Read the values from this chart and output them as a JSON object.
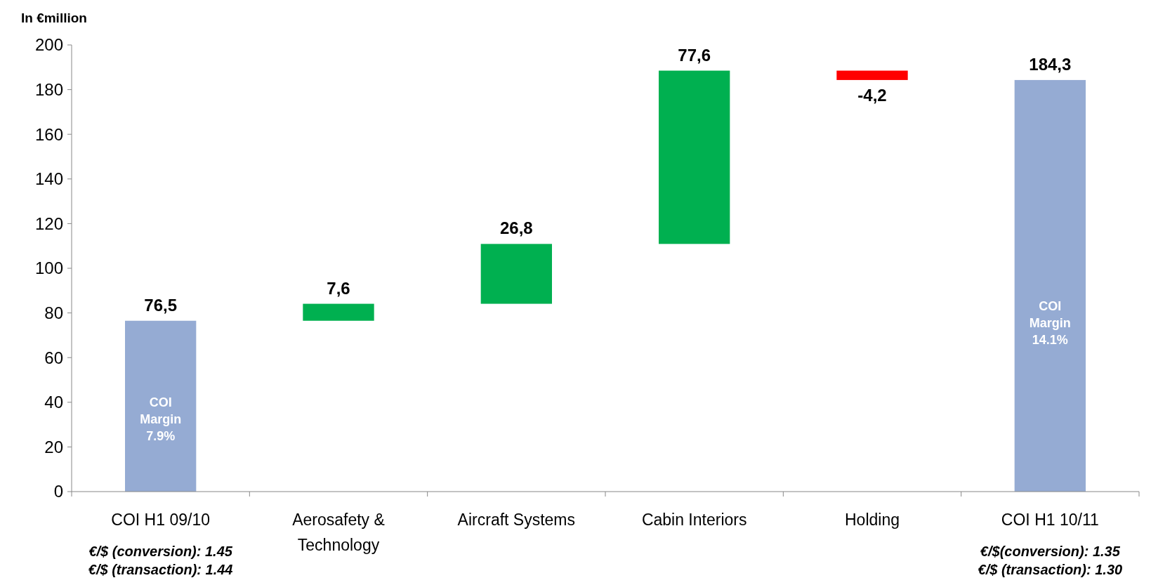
{
  "chart_data": {
    "type": "bar",
    "ylabel": "In €million",
    "categories": [
      "COI H1 09/10",
      "Aerosafety & Technology",
      "Aircraft Systems",
      "Cabin Interiors",
      "Holding",
      "COI H1 10/11"
    ],
    "values": [
      76.5,
      7.6,
      26.8,
      77.6,
      -4.2,
      184.3
    ],
    "base": [
      0,
      76.5,
      84.1,
      110.9,
      188.5,
      0
    ],
    "colors": [
      "#95abd3",
      "#00b050",
      "#00b050",
      "#00b050",
      "#ff0000",
      "#95abd3"
    ],
    "value_labels": [
      "76,5",
      "7,6",
      "26,8",
      "77,6",
      "-4,2",
      "184,3"
    ],
    "ylim": [
      0,
      200
    ],
    "yticks": [
      0,
      20,
      40,
      60,
      80,
      100,
      120,
      140,
      160,
      180,
      200
    ],
    "grid": false,
    "annotations": [
      "COI Margin 7.9%",
      "COI Margin 14.1%",
      "€/$ (conversion): 1.45",
      "€/$ (transaction): 1.44",
      "€/$(conversion): 1.35",
      "€/$ (transaction): 1.30"
    ]
  }
}
